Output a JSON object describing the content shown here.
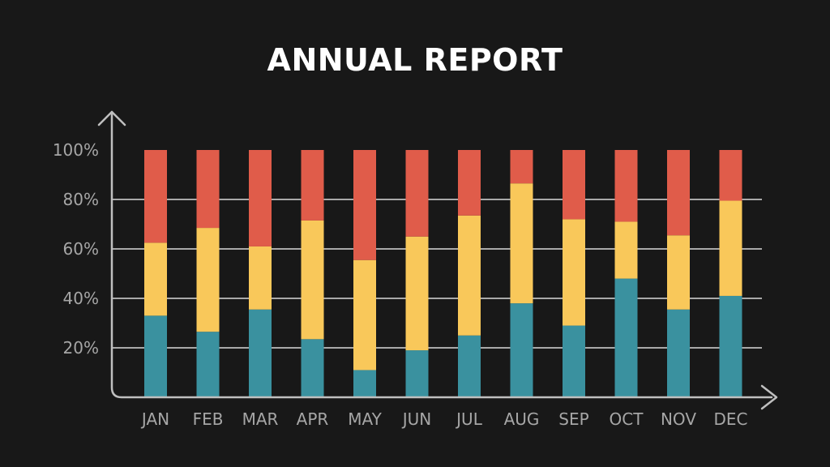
{
  "chart_data": {
    "type": "bar",
    "stacked": true,
    "title": "ANNUAL REPORT",
    "xlabel": "",
    "ylabel": "",
    "categories": [
      "JAN",
      "FEB",
      "MAR",
      "APR",
      "MAY",
      "JUN",
      "JUL",
      "AUG",
      "SEP",
      "OCT",
      "NOV",
      "DEC"
    ],
    "series": [
      {
        "color": "#3a919f",
        "values": [
          33,
          26.5,
          35.5,
          23.5,
          11,
          19,
          25,
          38,
          29,
          48,
          35.5,
          41
        ]
      },
      {
        "color": "#f9c85a",
        "values": [
          29.5,
          42,
          25.5,
          48,
          44.5,
          46,
          48.5,
          48.5,
          43,
          23,
          30,
          38.5
        ]
      },
      {
        "color": "#e05c4a",
        "values": [
          37.5,
          31.5,
          39,
          28.5,
          44.5,
          35,
          26.5,
          13.5,
          28,
          29,
          34.5,
          20.5
        ]
      }
    ],
    "y_ticks": [
      20,
      40,
      60,
      80,
      100
    ],
    "y_tick_labels": [
      "20%",
      "40%",
      "60%",
      "80%",
      "100%"
    ],
    "ylim": [
      0,
      100
    ],
    "grid": true,
    "legend": "none"
  },
  "colors": {
    "background": "#181818",
    "axis": "#bfbfbf",
    "grid": "#d9d9d9",
    "title": "#ffffff",
    "tick_label": "#a6a6a6"
  }
}
